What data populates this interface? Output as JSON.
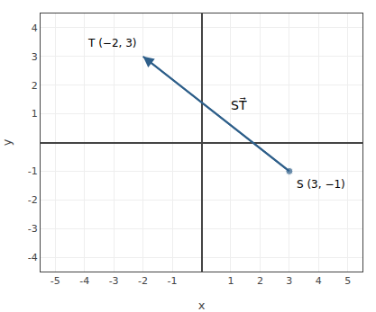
{
  "chart_data": {
    "type": "vector",
    "x": [
      3,
      -2
    ],
    "y": [
      -1,
      3
    ],
    "labels": [
      "S (3, −1)",
      "T (−2, 3)"
    ],
    "vector_label": "ST⃗",
    "color": "#2E5F8A",
    "xlabel": "x",
    "ylabel": "y",
    "xlim": [
      -5.5,
      5.5
    ],
    "ylim": [
      -4.5,
      4.5
    ],
    "xticks": [
      -5,
      -4,
      -3,
      -2,
      -1,
      1,
      2,
      3,
      4,
      5
    ],
    "yticks": [
      -4,
      -3,
      -2,
      -1,
      1,
      2,
      3,
      4
    ],
    "grid": true
  }
}
